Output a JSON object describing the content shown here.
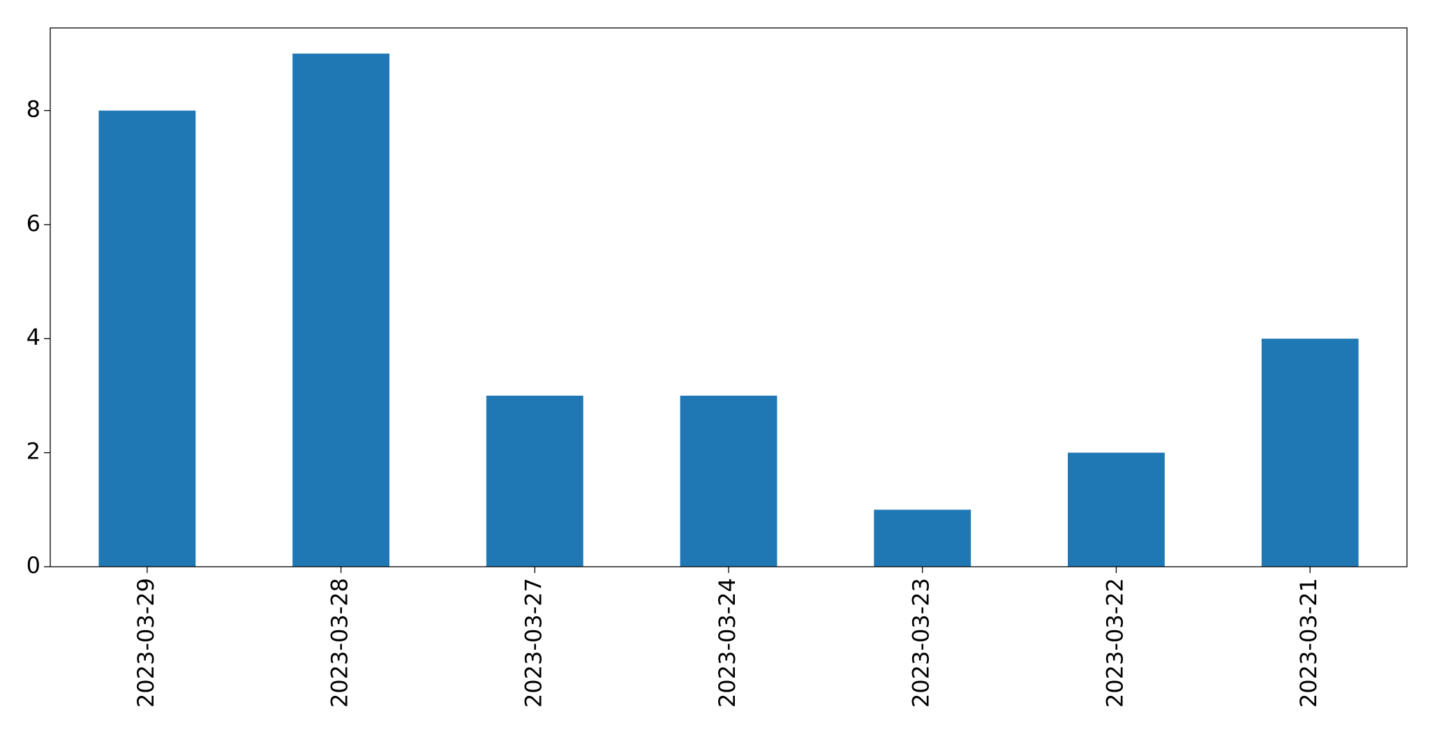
{
  "chart_data": {
    "type": "bar",
    "categories": [
      "2023-03-29",
      "2023-03-28",
      "2023-03-27",
      "2023-03-24",
      "2023-03-23",
      "2023-03-22",
      "2023-03-21"
    ],
    "values": [
      8,
      9,
      3,
      3,
      1,
      2,
      4
    ],
    "yticks": [
      "0",
      "2",
      "4",
      "6",
      "8"
    ],
    "ylim": [
      0,
      9.45
    ],
    "title": "",
    "xlabel": "",
    "ylabel": "",
    "grid": false,
    "legend": "none",
    "colors": {
      "bar": "#1f77b4",
      "axes": "#000000",
      "background": "#ffffff"
    }
  }
}
